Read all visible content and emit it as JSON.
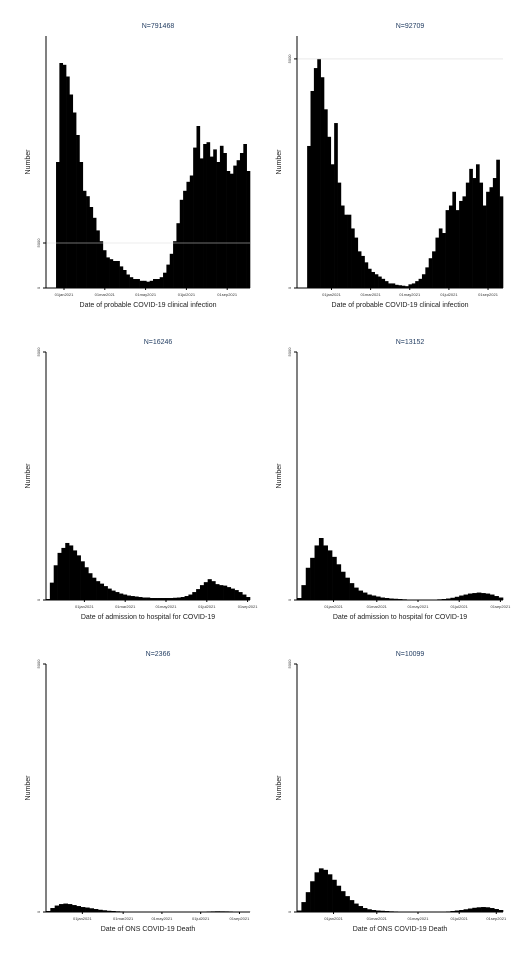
{
  "chart_data": [
    {
      "type": "bar",
      "title": "N=791468",
      "xlabel": "Date of probable COVID-19 clinical infection",
      "ylabel": "Number",
      "yticks": [
        0,
        5000
      ],
      "ylim": [
        0,
        28000
      ],
      "grid": true,
      "xticks": [
        {
          "label": "01jan2021",
          "pos": 0
        },
        {
          "label": "01mar2021",
          "pos": 0.2
        },
        {
          "label": "01may2021",
          "pos": 0.4
        },
        {
          "label": "01jul2021",
          "pos": 0.6
        },
        {
          "label": "01sep2021",
          "pos": 0.8
        }
      ],
      "values": [
        0,
        0,
        0,
        14000,
        25000,
        24800,
        23500,
        21500,
        19500,
        17000,
        14000,
        10800,
        10200,
        9000,
        7800,
        6400,
        5200,
        4200,
        3400,
        3200,
        3000,
        3000,
        2400,
        2000,
        1500,
        1200,
        1000,
        1000,
        800,
        800,
        700,
        800,
        1000,
        1000,
        1200,
        1700,
        2600,
        3800,
        5200,
        7200,
        9800,
        10800,
        11800,
        12500,
        15600,
        18000,
        14400,
        16000,
        16200,
        14600,
        15400,
        14000,
        15800,
        15000,
        13000,
        12700,
        13600,
        14200,
        15000,
        16000,
        13000
      ]
    },
    {
      "type": "bar",
      "title": "N=92709",
      "xlabel": "Date of probable COVID-19 clinical infection",
      "ylabel": "Number",
      "yticks": [
        0,
        5000
      ],
      "ylim": [
        0,
        5500
      ],
      "grid": true,
      "xticks": [
        {
          "label": "01jan2021",
          "pos": 0.08
        },
        {
          "label": "01mar2021",
          "pos": 0.27
        },
        {
          "label": "01may2021",
          "pos": 0.46
        },
        {
          "label": "01jul2021",
          "pos": 0.65
        },
        {
          "label": "01sep2021",
          "pos": 0.84
        }
      ],
      "values": [
        0,
        0,
        0,
        3100,
        4300,
        4800,
        5000,
        4600,
        3900,
        3300,
        2700,
        3600,
        2300,
        1800,
        1600,
        1600,
        1300,
        1100,
        800,
        700,
        560,
        420,
        350,
        300,
        250,
        200,
        150,
        100,
        100,
        70,
        60,
        50,
        40,
        80,
        100,
        150,
        200,
        300,
        450,
        650,
        800,
        1100,
        1300,
        1200,
        1700,
        1800,
        2100,
        1700,
        1900,
        2000,
        2300,
        2600,
        2400,
        2700,
        2300,
        1800,
        2100,
        2200,
        2400,
        2800,
        2000
      ]
    },
    {
      "type": "bar",
      "title": "N=16246",
      "xlabel": "Date of admission to hospital for COVID-19",
      "ylabel": "Number",
      "yticks": [
        0,
        5000
      ],
      "ylim": [
        0,
        5000
      ],
      "grid": false,
      "xticks": [
        {
          "label": "01jan2021",
          "pos": 0.1
        },
        {
          "label": "01mar2021",
          "pos": 0.3
        },
        {
          "label": "01may2021",
          "pos": 0.5
        },
        {
          "label": "01jul2021",
          "pos": 0.7
        },
        {
          "label": "01sep2021",
          "pos": 0.9
        }
      ],
      "values": [
        20,
        350,
        700,
        950,
        1050,
        1150,
        1100,
        1000,
        900,
        780,
        660,
        540,
        450,
        380,
        330,
        280,
        230,
        190,
        160,
        130,
        110,
        90,
        80,
        70,
        60,
        50,
        50,
        40,
        40,
        40,
        40,
        40,
        40,
        45,
        50,
        60,
        80,
        110,
        160,
        220,
        300,
        360,
        420,
        380,
        320,
        300,
        290,
        260,
        230,
        200,
        160,
        110,
        60
      ]
    },
    {
      "type": "bar",
      "title": "N=13152",
      "xlabel": "Date of admission to hospital for COVID-19",
      "ylabel": "Number",
      "yticks": [
        0,
        5000
      ],
      "ylim": [
        0,
        5000
      ],
      "grid": false,
      "xticks": [
        {
          "label": "01jan2021",
          "pos": 0.09
        },
        {
          "label": "01mar2021",
          "pos": 0.3
        },
        {
          "label": "01may2021",
          "pos": 0.5
        },
        {
          "label": "01jul2021",
          "pos": 0.7
        },
        {
          "label": "01sep2021",
          "pos": 0.9
        }
      ],
      "values": [
        40,
        300,
        650,
        850,
        1100,
        1250,
        1100,
        1000,
        870,
        720,
        570,
        450,
        340,
        250,
        190,
        150,
        110,
        90,
        70,
        50,
        40,
        30,
        25,
        20,
        15,
        10,
        10,
        10,
        10,
        10,
        10,
        10,
        15,
        20,
        30,
        45,
        65,
        90,
        110,
        130,
        140,
        150,
        140,
        130,
        110,
        80,
        50
      ]
    },
    {
      "type": "bar",
      "title": "N=2366",
      "xlabel": "Date of ONS COVID-19 Death",
      "ylabel": "Number",
      "yticks": [
        0,
        5000
      ],
      "ylim": [
        0,
        5000
      ],
      "grid": false,
      "xticks": [
        {
          "label": "01jan2021",
          "pos": 0.09
        },
        {
          "label": "01mar2021",
          "pos": 0.29
        },
        {
          "label": "01may2021",
          "pos": 0.48
        },
        {
          "label": "01jul2021",
          "pos": 0.67
        },
        {
          "label": "01sep2021",
          "pos": 0.86
        }
      ],
      "values": [
        20,
        80,
        130,
        160,
        170,
        160,
        140,
        120,
        100,
        90,
        75,
        60,
        45,
        35,
        25,
        20,
        15,
        12,
        10,
        8,
        6,
        5,
        5,
        5,
        5,
        5,
        5,
        5,
        5,
        5,
        5,
        5,
        5,
        5,
        6,
        8,
        10,
        12,
        14,
        16,
        15,
        14,
        12,
        10,
        8,
        6,
        5
      ]
    },
    {
      "type": "bar",
      "title": "N=10099",
      "xlabel": "Date of ONS COVID-19 Death",
      "ylabel": "Number",
      "yticks": [
        0,
        5000
      ],
      "ylim": [
        0,
        5000
      ],
      "grid": false,
      "xticks": [
        {
          "label": "01jan2021",
          "pos": 0.09
        },
        {
          "label": "01mar2021",
          "pos": 0.3
        },
        {
          "label": "01may2021",
          "pos": 0.5
        },
        {
          "label": "01jul2021",
          "pos": 0.7
        },
        {
          "label": "01sep2021",
          "pos": 0.88
        }
      ],
      "values": [
        30,
        200,
        400,
        620,
        800,
        880,
        850,
        760,
        650,
        530,
        420,
        320,
        240,
        170,
        120,
        80,
        55,
        40,
        30,
        25,
        20,
        15,
        12,
        10,
        8,
        6,
        5,
        5,
        5,
        5,
        5,
        5,
        5,
        8,
        12,
        20,
        30,
        40,
        55,
        70,
        85,
        95,
        100,
        95,
        80,
        60,
        40
      ]
    }
  ]
}
